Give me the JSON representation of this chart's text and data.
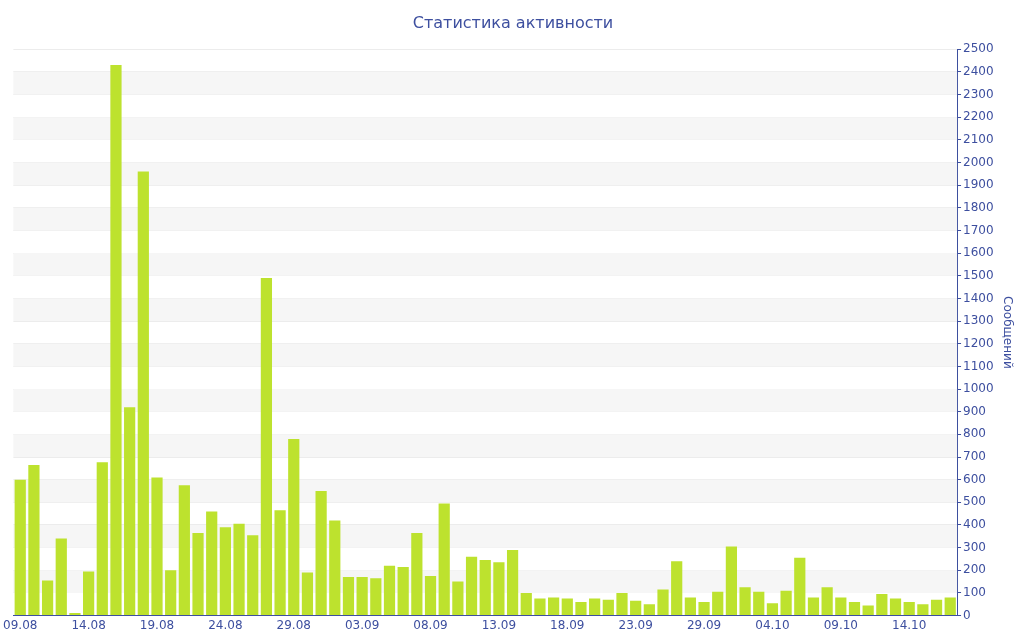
{
  "chart_data": {
    "type": "bar",
    "title": "Статистика активности",
    "ylabel": "Сообщений",
    "categories": [
      "09.08",
      null,
      null,
      null,
      null,
      "14.08",
      null,
      null,
      null,
      null,
      "19.08",
      null,
      null,
      null,
      null,
      "24.08",
      null,
      null,
      null,
      null,
      "29.08",
      null,
      null,
      null,
      null,
      "03.09",
      null,
      null,
      null,
      null,
      "08.09",
      null,
      null,
      null,
      null,
      "13.09",
      null,
      null,
      null,
      null,
      "18.09",
      null,
      null,
      null,
      null,
      "23.09",
      null,
      null,
      null,
      null,
      "29.09",
      null,
      null,
      null,
      null,
      "04.10",
      null,
      null,
      null,
      null,
      "09.10",
      null,
      null,
      null,
      null,
      "14.10",
      null,
      null,
      null
    ],
    "values": [
      600,
      665,
      155,
      340,
      12,
      195,
      677,
      2430,
      920,
      1960,
      610,
      200,
      575,
      365,
      460,
      390,
      405,
      355,
      1490,
      465,
      780,
      190,
      550,
      420,
      170,
      170,
      165,
      220,
      215,
      365,
      175,
      495,
      150,
      260,
      245,
      235,
      290,
      100,
      75,
      80,
      75,
      60,
      75,
      70,
      100,
      65,
      50,
      115,
      240,
      80,
      60,
      105,
      305,
      125,
      105,
      55,
      110,
      255,
      80,
      125,
      80,
      60,
      45,
      95,
      75,
      60,
      50,
      70,
      80
    ],
    "color": "#bde22e",
    "ylim": [
      0,
      2500
    ],
    "yticks": [
      0,
      100,
      200,
      300,
      400,
      500,
      600,
      700,
      800,
      900,
      1000,
      1100,
      1200,
      1300,
      1400,
      1500,
      1600,
      1700,
      1800,
      1900,
      2000,
      2100,
      2200,
      2300,
      2400,
      2500
    ],
    "grid": "y",
    "legend": false
  }
}
